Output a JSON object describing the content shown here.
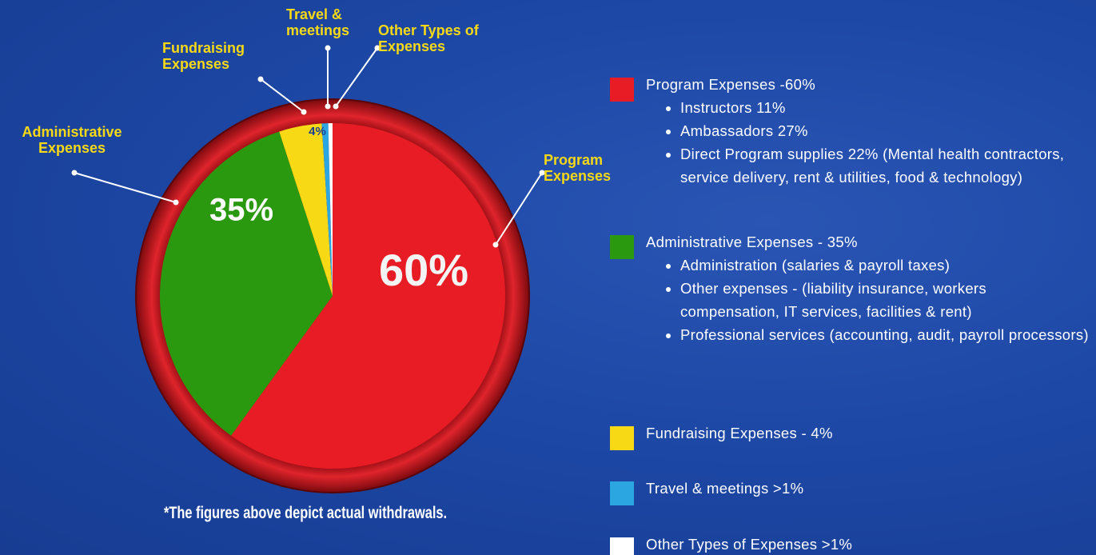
{
  "chart_data": {
    "type": "pie",
    "categories": [
      "Program Expenses",
      "Administrative Expenses",
      "Fundraising Expenses",
      "Travel & meetings",
      "Other Types of Expenses"
    ],
    "values": [
      60,
      35,
      4,
      0.6,
      0.4
    ],
    "value_labels": [
      "60%",
      "35%",
      "4%",
      null,
      null
    ],
    "colors": [
      "#e81c24",
      "#2b990f",
      "#f8d916",
      "#2ba6e0",
      "#ffffff"
    ]
  },
  "legend": [
    {
      "text": "Program Expenses -60%",
      "color": "#e81c24",
      "bullets": [
        "Instructors 11%",
        "Ambassadors 27%",
        "Direct Program supplies 22% (Mental health contractors, service delivery, rent & utilities, food & technology)"
      ]
    },
    {
      "text": "Administrative Expenses - 35%",
      "color": "#2b990f",
      "bullets": [
        "Administration (salaries & payroll taxes)",
        "Other expenses - (liability insurance, workers compensation, IT services, facilities & rent)",
        "Professional services (accounting, audit, payroll processors)"
      ]
    },
    {
      "text": "Fundraising Expenses - 4%",
      "color": "#f8d916",
      "bullets": []
    },
    {
      "text": "Travel & meetings >1%",
      "color": "#2ba6e0",
      "bullets": []
    },
    {
      "text": "Other Types of Expenses >1%",
      "color": "#ffffff",
      "bullets": []
    }
  ],
  "note": "*The figures above depict actual withdrawals."
}
